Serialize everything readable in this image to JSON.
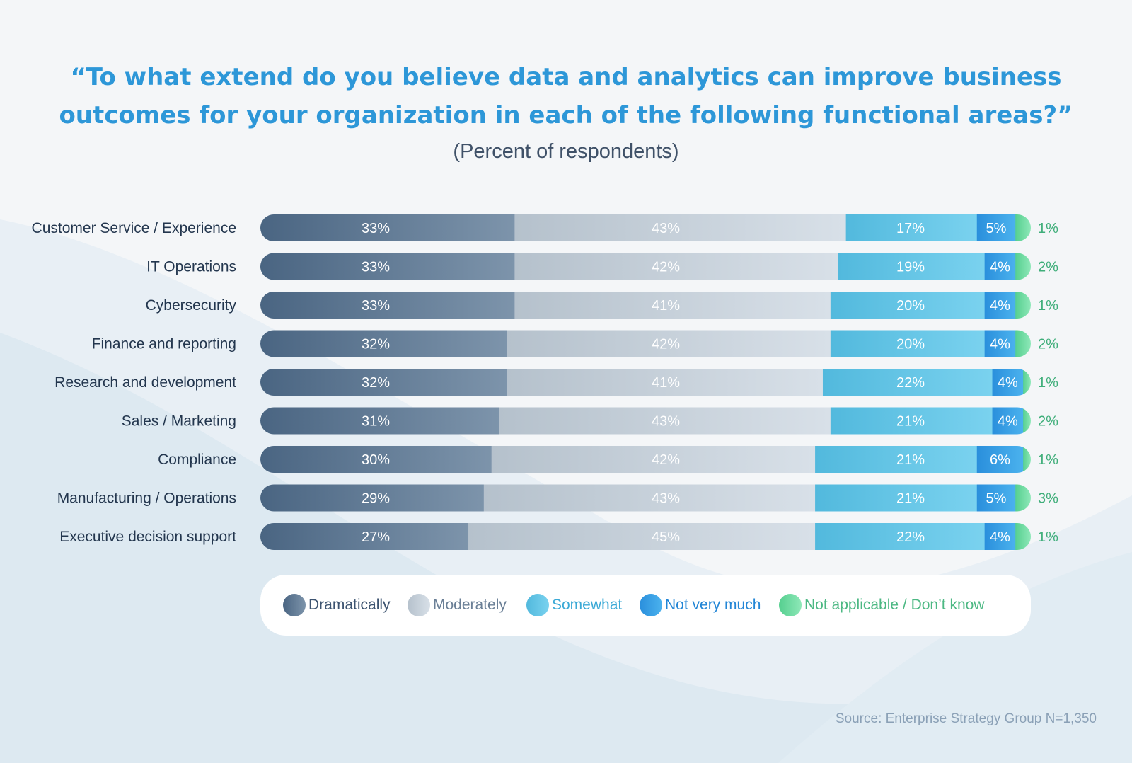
{
  "title_line1": "“To what extend do you believe data and analytics can improve business",
  "title_line2": "outcomes for your organization in each of the following functional areas?”",
  "subtitle": "(Percent of respondents)",
  "source": "Source: Enterprise Strategy Group N=1,350",
  "colors": {
    "dramatically": [
      "#4a6582",
      "#7d94ab"
    ],
    "moderately": [
      "#b5c1cc",
      "#d8e0e8"
    ],
    "somewhat": [
      "#52b9dd",
      "#7ad2ef"
    ],
    "not_very_much": [
      "#2a8fdc",
      "#4bb2ee"
    ],
    "na": [
      "#55cf8f",
      "#8ee8b8"
    ],
    "legend_text": [
      "#3c5370",
      "#6a7f96",
      "#3aa9d6",
      "#2386d6",
      "#4cb883"
    ]
  },
  "legend": [
    {
      "key": "dramatically",
      "label": "Dramatically"
    },
    {
      "key": "moderately",
      "label": "Moderately"
    },
    {
      "key": "somewhat",
      "label": "Somewhat"
    },
    {
      "key": "not_very_much",
      "label": "Not very much"
    },
    {
      "key": "na",
      "label": "Not applicable / Don’t know"
    }
  ],
  "chart_data": {
    "type": "bar",
    "orientation": "horizontal",
    "stacked": true,
    "title": "“To what extend do you believe data and analytics can improve business outcomes for your organization in each of the following functional areas?”",
    "subtitle": "(Percent of respondents)",
    "categories": [
      "Customer Service / Experience",
      "IT Operations",
      "Cybersecurity",
      "Finance and reporting",
      "Research and development",
      "Sales / Marketing",
      "Compliance",
      "Manufacturing / Operations",
      "Executive decision support"
    ],
    "series": [
      {
        "name": "Dramatically",
        "key": "dramatically",
        "values": [
          33,
          33,
          33,
          32,
          32,
          31,
          30,
          29,
          27
        ]
      },
      {
        "name": "Moderately",
        "key": "moderately",
        "values": [
          43,
          42,
          41,
          42,
          41,
          43,
          42,
          43,
          45
        ]
      },
      {
        "name": "Somewhat",
        "key": "somewhat",
        "values": [
          17,
          19,
          20,
          20,
          22,
          21,
          21,
          21,
          22
        ]
      },
      {
        "name": "Not very much",
        "key": "not_very_much",
        "values": [
          5,
          4,
          4,
          4,
          4,
          4,
          6,
          5,
          4
        ]
      },
      {
        "name": "Not applicable / Don’t know",
        "key": "na",
        "values": [
          1,
          2,
          1,
          2,
          1,
          2,
          1,
          3,
          1
        ]
      }
    ],
    "unit": "%",
    "xlim": [
      0,
      100
    ],
    "legend_position": "bottom"
  }
}
